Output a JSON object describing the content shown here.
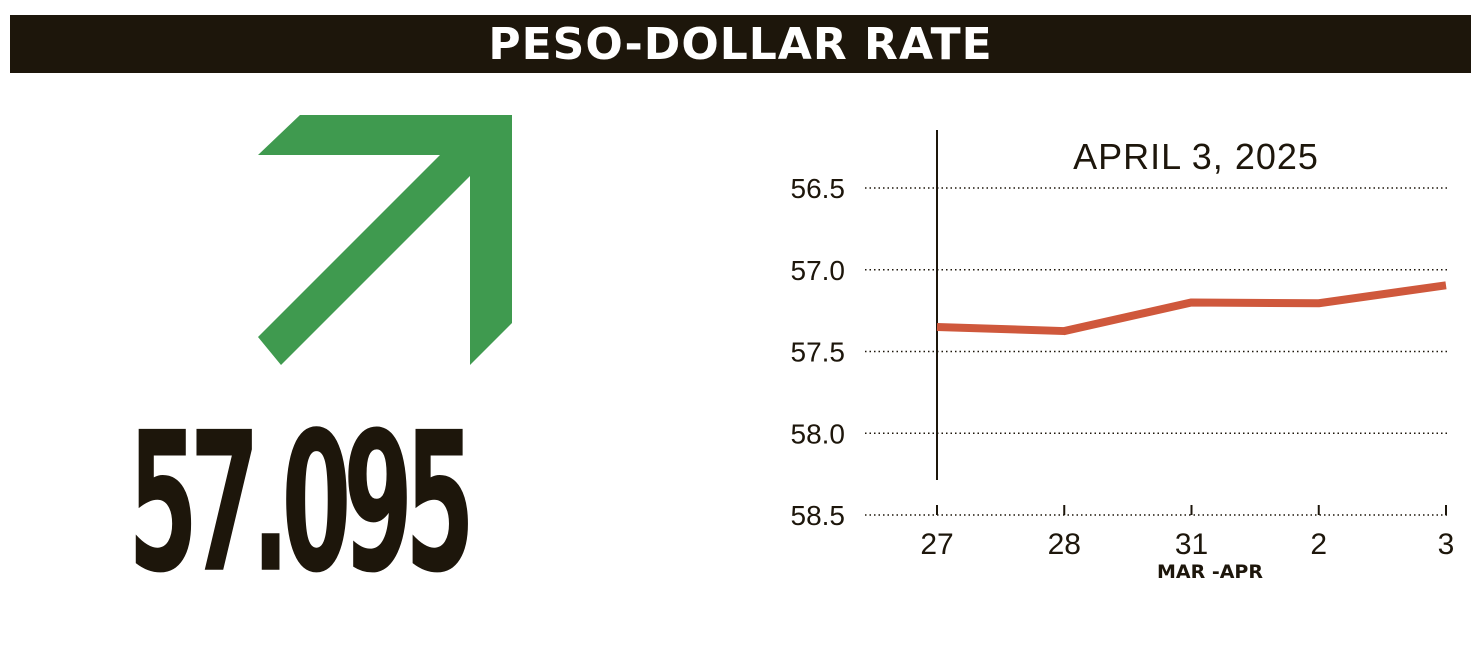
{
  "header": {
    "title": "PESO-DOLLAR RATE"
  },
  "rate": {
    "value": "57.095",
    "direction": "up",
    "icon": "up-right-arrow-icon",
    "arrow_color": "#3f9a4f"
  },
  "colors": {
    "header_bg": "#1d160b",
    "text_dark": "#1d160b",
    "line": "#cf583c"
  },
  "chart_data": {
    "type": "line",
    "title": "APRIL 3, 2025",
    "xlabel": "MAR -APR",
    "ylabel": "",
    "categories": [
      "27",
      "28",
      "31",
      "2",
      "3"
    ],
    "series": [
      {
        "values": [
          57.35,
          57.375,
          57.2,
          57.205,
          57.095
        ]
      }
    ],
    "ylim": [
      58.5,
      56.5
    ],
    "y_inverted": true,
    "yticks": [
      "56.5",
      "57.0",
      "57.5",
      "58.0",
      "58.5"
    ],
    "grid": "horizontal-dotted",
    "legend": "none"
  }
}
